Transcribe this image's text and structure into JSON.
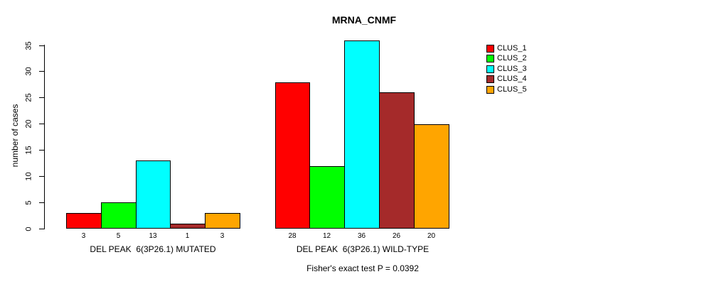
{
  "chart_data": {
    "type": "bar",
    "title": "MRNA_CNMF",
    "ylabel": "number of cases",
    "xlabel": "",
    "ylim": [
      0,
      35
    ],
    "yticks": [
      0,
      5,
      10,
      15,
      20,
      25,
      30,
      35
    ],
    "grid": false,
    "legend_position": "right",
    "series": [
      {
        "name": "CLUS_1",
        "color": "#FF0000"
      },
      {
        "name": "CLUS_2",
        "color": "#00FF00"
      },
      {
        "name": "CLUS_3",
        "color": "#00FFFF"
      },
      {
        "name": "CLUS_4",
        "color": "#A52A2A"
      },
      {
        "name": "CLUS_5",
        "color": "#FFA500"
      }
    ],
    "groups": [
      {
        "label": "DEL PEAK  6(3P26.1) MUTATED",
        "values": [
          3,
          5,
          13,
          1,
          3
        ]
      },
      {
        "label": "DEL PEAK  6(3P26.1) WILD-TYPE",
        "values": [
          28,
          12,
          36,
          26,
          20
        ]
      }
    ],
    "bar_value_labels_shown": true,
    "footnote": "Fisher's exact test P = 0.0392"
  }
}
